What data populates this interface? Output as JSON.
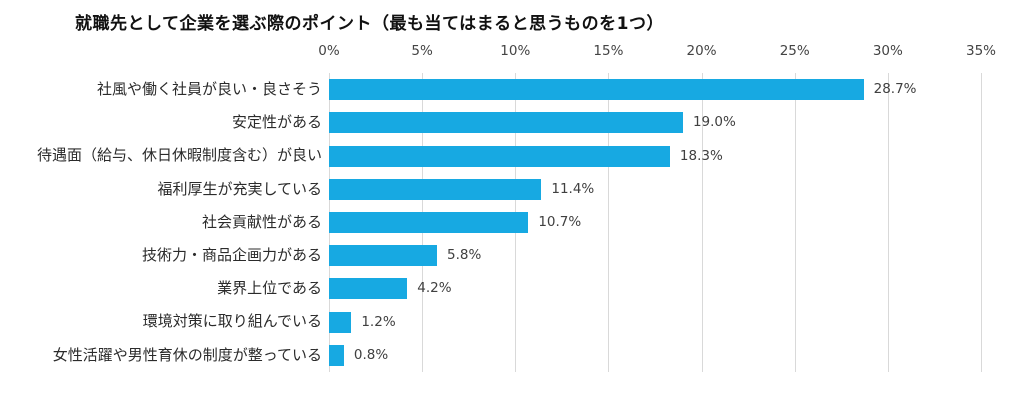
{
  "chart_data": {
    "type": "bar",
    "orientation": "horizontal",
    "title": "就職先として企業を選ぶ際のポイント（最も当てはまると思うものを1つ）",
    "categories": [
      "社風や働く社員が良い・良さそう",
      "安定性がある",
      "待遇面（給与、休日休暇制度含む）が良い",
      "福利厚生が充実している",
      "社会貢献性がある",
      "技術力・商品企画力がある",
      "業界上位である",
      "環境対策に取り組んでいる",
      "女性活躍や男性育休の制度が整っている"
    ],
    "values": [
      28.7,
      19.0,
      18.3,
      11.4,
      10.7,
      5.8,
      4.2,
      1.2,
      0.8
    ],
    "value_labels": [
      "28.7%",
      "19.0%",
      "18.3%",
      "11.4%",
      "10.7%",
      "5.8%",
      "4.2%",
      "1.2%",
      "0.8%"
    ],
    "x_ticks": [
      "0%",
      "5%",
      "10%",
      "15%",
      "20%",
      "25%",
      "30%",
      "35%"
    ],
    "x_tick_values": [
      0,
      5,
      10,
      15,
      20,
      25,
      30,
      35
    ],
    "xlim": [
      0,
      35
    ],
    "axis_position": "top",
    "grid": "vertical",
    "legend": "none",
    "bar_color": "#17a9e2",
    "gridline_color": "#d9d9d9",
    "label_color": "#404040"
  }
}
